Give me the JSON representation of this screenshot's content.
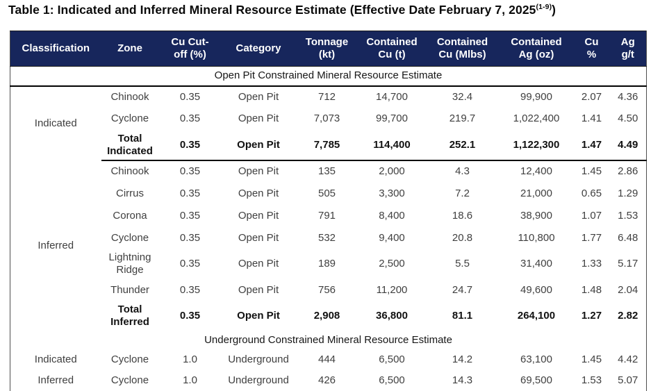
{
  "title": {
    "main": "Table 1: Indicated and Inferred Mineral Resource Estimate (Effective Date February 7, 2025",
    "superscript": "(1-9)",
    "close": ")"
  },
  "colors": {
    "header_bg": "#17265c",
    "header_text": "#ffffff",
    "body_text": "#3f3f3f",
    "rule": "#000000"
  },
  "table": {
    "columns": [
      [
        "Classification"
      ],
      [
        "Zone"
      ],
      [
        "Cu Cut-",
        "off (%)"
      ],
      [
        "Category"
      ],
      [
        "Tonnage",
        "(kt)"
      ],
      [
        "Contained",
        "Cu (t)"
      ],
      [
        "Contained",
        "Cu (Mlbs)"
      ],
      [
        "Contained",
        "Ag (oz)"
      ],
      [
        "Cu",
        "%"
      ],
      [
        "Ag",
        "g/t"
      ]
    ],
    "sections": [
      {
        "subtitle": "Open Pit Constrained Mineral Resource Estimate",
        "subtitle_border": true,
        "groups": [
          {
            "classification": "Indicated",
            "rows": [
              {
                "cells": [
                  "Chinook",
                  "0.35",
                  "Open Pit",
                  "712",
                  "14,700",
                  "32.4",
                  "99,900",
                  "2.07",
                  "4.36"
                ],
                "bold": false,
                "border_bottom": false
              },
              {
                "cells": [
                  "Cyclone",
                  "0.35",
                  "Open Pit",
                  "7,073",
                  "99,700",
                  "219.7",
                  "1,022,400",
                  "1.41",
                  "4.50"
                ],
                "bold": false,
                "border_bottom": false
              },
              {
                "cells": [
                  "Total Indicated",
                  "0.35",
                  "Open Pit",
                  "7,785",
                  "114,400",
                  "252.1",
                  "1,122,300",
                  "1.47",
                  "4.49"
                ],
                "bold": true,
                "border_bottom": true
              }
            ]
          },
          {
            "classification": "Inferred",
            "rows": [
              {
                "cells": [
                  "Chinook",
                  "0.35",
                  "Open Pit",
                  "135",
                  "2,000",
                  "4.3",
                  "12,400",
                  "1.45",
                  "2.86"
                ],
                "bold": false,
                "border_bottom": false
              },
              {
                "cells": [
                  "Cirrus",
                  "0.35",
                  "Open Pit",
                  "505",
                  "3,300",
                  "7.2",
                  "21,000",
                  "0.65",
                  "1.29"
                ],
                "bold": false,
                "border_bottom": false
              },
              {
                "cells": [
                  "Corona",
                  "0.35",
                  "Open Pit",
                  "791",
                  "8,400",
                  "18.6",
                  "38,900",
                  "1.07",
                  "1.53"
                ],
                "bold": false,
                "border_bottom": false
              },
              {
                "cells": [
                  "Cyclone",
                  "0.35",
                  "Open Pit",
                  "532",
                  "9,400",
                  "20.8",
                  "110,800",
                  "1.77",
                  "6.48"
                ],
                "bold": false,
                "border_bottom": false
              },
              {
                "cells": [
                  "Lightning Ridge",
                  "0.35",
                  "Open Pit",
                  "189",
                  "2,500",
                  "5.5",
                  "31,400",
                  "1.33",
                  "5.17"
                ],
                "bold": false,
                "border_bottom": false
              },
              {
                "cells": [
                  "Thunder",
                  "0.35",
                  "Open Pit",
                  "756",
                  "11,200",
                  "24.7",
                  "49,600",
                  "1.48",
                  "2.04"
                ],
                "bold": false,
                "border_bottom": false
              },
              {
                "cells": [
                  "Total Inferred",
                  "0.35",
                  "Open Pit",
                  "2,908",
                  "36,800",
                  "81.1",
                  "264,100",
                  "1.27",
                  "2.82"
                ],
                "bold": true,
                "border_bottom": false
              }
            ]
          }
        ]
      },
      {
        "subtitle": "Underground Constrained Mineral Resource Estimate",
        "subtitle_border": false,
        "groups": [
          {
            "classification": "Indicated",
            "rows": [
              {
                "cells": [
                  "Cyclone",
                  "1.0",
                  "Underground",
                  "444",
                  "6,500",
                  "14.2",
                  "63,100",
                  "1.45",
                  "4.42"
                ],
                "bold": false,
                "border_bottom": false
              }
            ]
          },
          {
            "classification": "Inferred",
            "rows": [
              {
                "cells": [
                  "Cyclone",
                  "1.0",
                  "Underground",
                  "426",
                  "6,500",
                  "14.3",
                  "69,500",
                  "1.53",
                  "5.07"
                ],
                "bold": false,
                "border_bottom": false
              }
            ]
          }
        ]
      }
    ]
  }
}
